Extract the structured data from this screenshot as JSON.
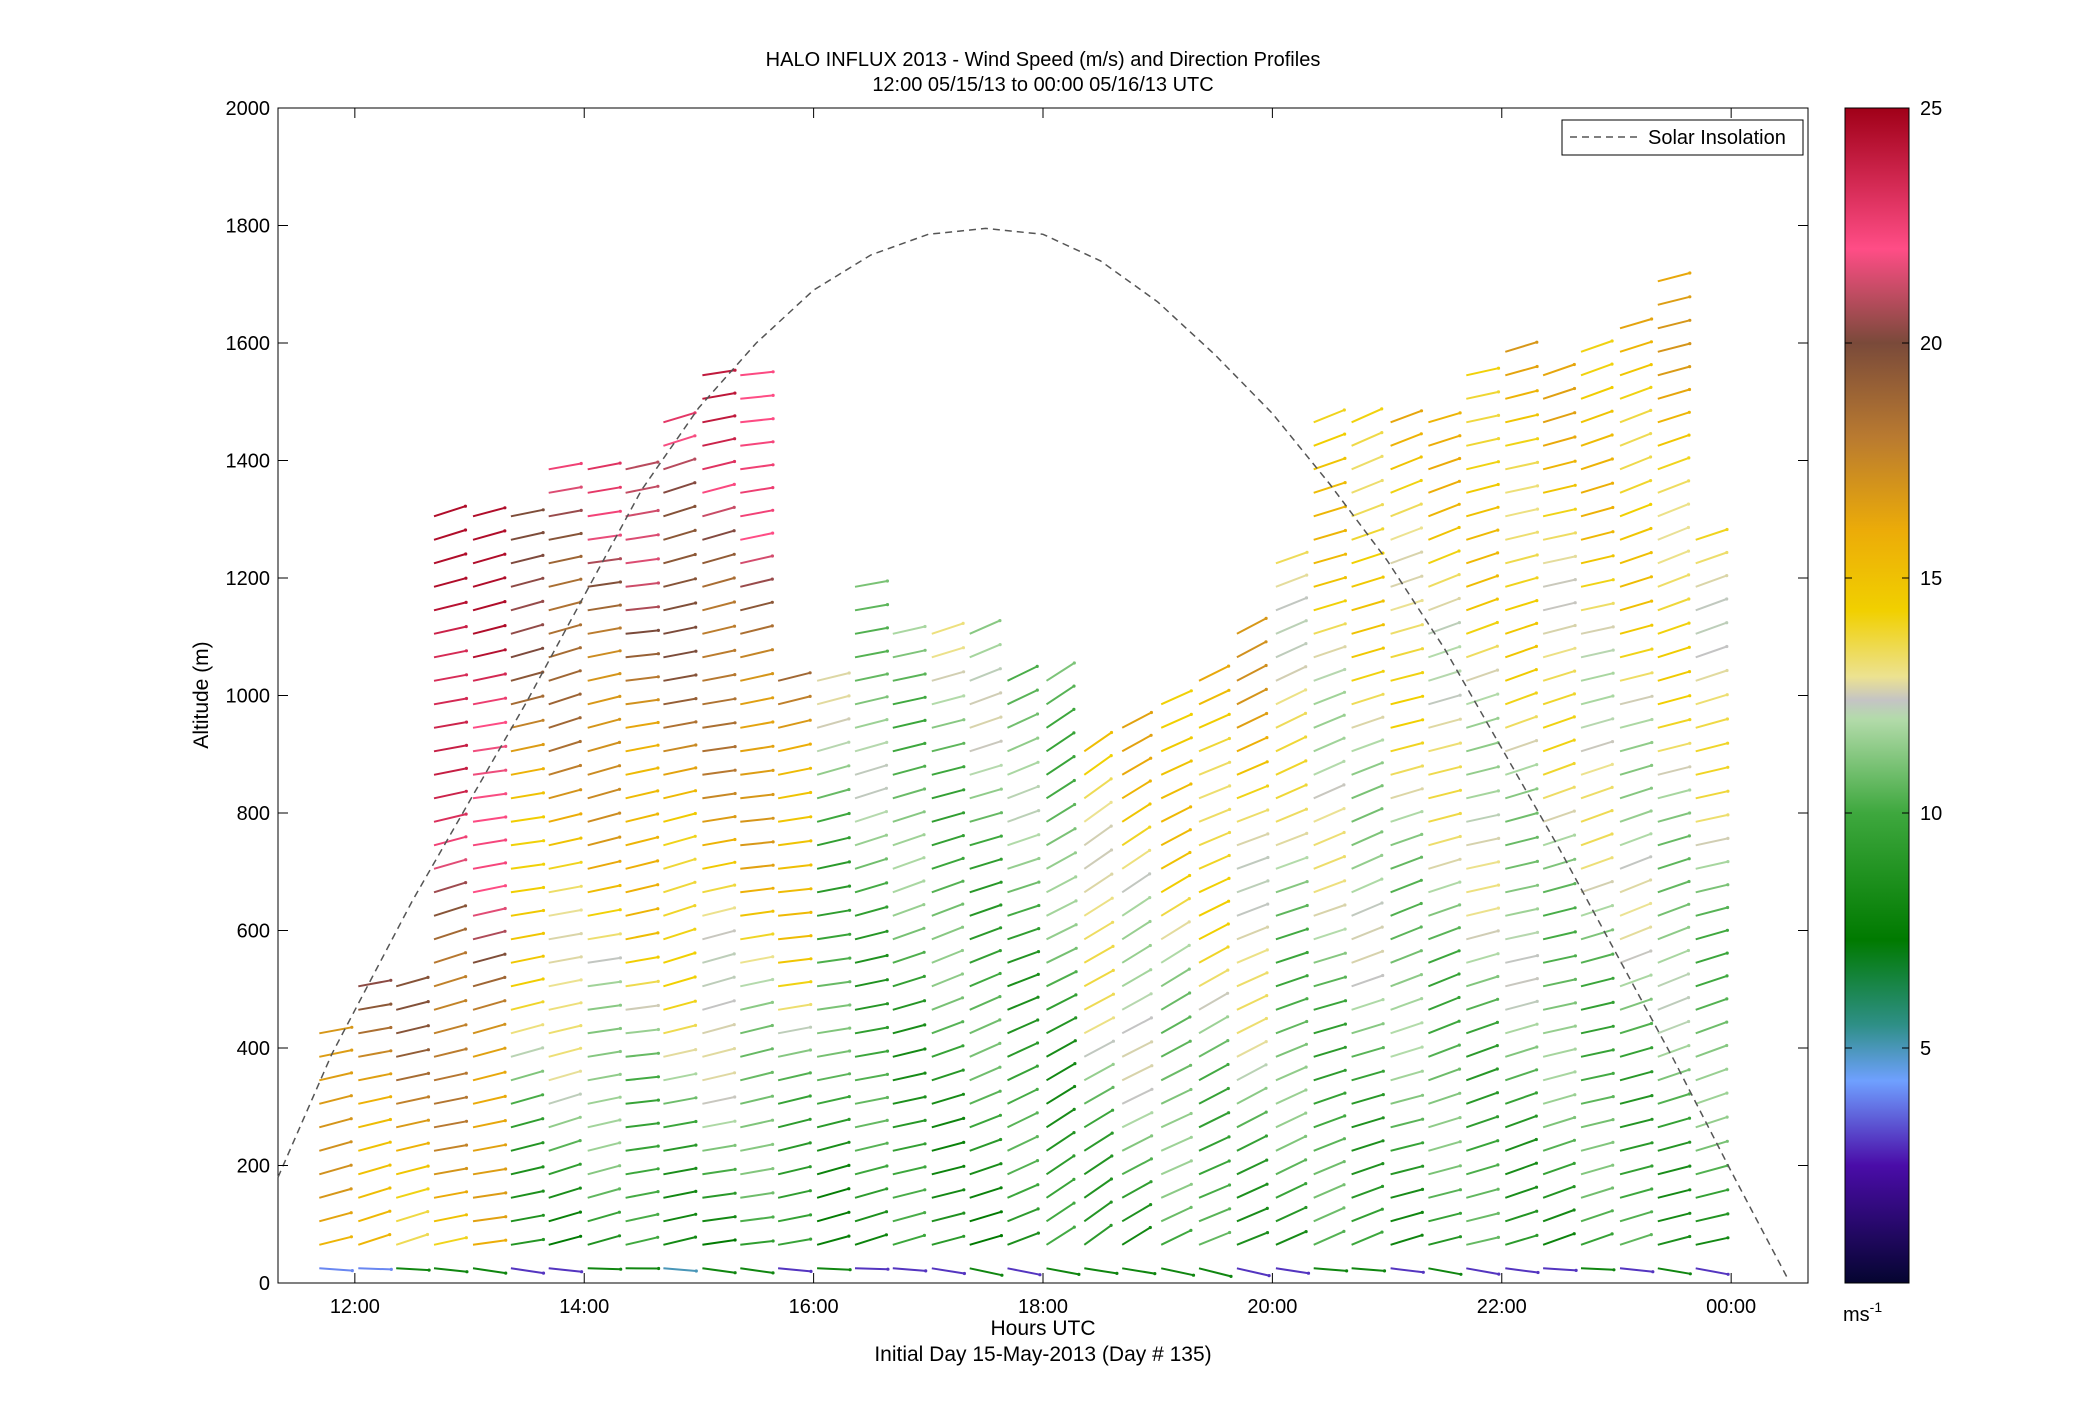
{
  "chart_data": {
    "type": "scatter",
    "subtype": "wind-barb-profile",
    "title": "HALO INFLUX 2013 - Wind Speed (m/s) and Direction Profiles",
    "subtitle": "12:00 05/15/13 to 00:00 05/16/13  UTC",
    "xlabel": "Hours UTC",
    "xlabel_secondary": "Initial Day 15-May-2013 (Day # 135)",
    "ylabel": "Altitude (m)",
    "xlim": [
      11.33,
      24.67
    ],
    "ylim": [
      0,
      2000
    ],
    "x_ticks": [
      12,
      14,
      16,
      18,
      20,
      22,
      24
    ],
    "x_tick_labels": [
      "12:00",
      "14:00",
      "16:00",
      "18:00",
      "20:00",
      "22:00",
      "00:00"
    ],
    "y_ticks": [
      0,
      200,
      400,
      600,
      800,
      1000,
      1200,
      1400,
      1600,
      1800,
      2000
    ],
    "y_tick_labels": [
      "0",
      "200",
      "400",
      "600",
      "800",
      "1000",
      "1200",
      "1400",
      "1600",
      "1800",
      "2000"
    ],
    "grid": false,
    "legend": {
      "placement": "top-right",
      "entries": [
        {
          "label": "Solar Insolation",
          "style": "dashed",
          "color": "#555555"
        }
      ]
    },
    "colorbar": {
      "label": "ms",
      "label_sup": "-1",
      "range": [
        0,
        25
      ],
      "ticks": [
        5,
        10,
        15,
        20,
        25
      ],
      "tick_labels": [
        "5",
        "10",
        "15",
        "20",
        "25"
      ],
      "stops": [
        {
          "v": 0,
          "c": "#050530"
        },
        {
          "v": 2.5,
          "c": "#4a0ca8"
        },
        {
          "v": 4.3,
          "c": "#6fa0ff"
        },
        {
          "v": 5.5,
          "c": "#2e8f86"
        },
        {
          "v": 7.3,
          "c": "#007a00"
        },
        {
          "v": 10,
          "c": "#3ea83e"
        },
        {
          "v": 12,
          "c": "#b3dbaa"
        },
        {
          "v": 12.4,
          "c": "#c4c4c4"
        },
        {
          "v": 12.9,
          "c": "#ece291"
        },
        {
          "v": 14.3,
          "c": "#f1d000"
        },
        {
          "v": 16,
          "c": "#ecac08"
        },
        {
          "v": 18,
          "c": "#b97a30"
        },
        {
          "v": 20,
          "c": "#7a4a3a"
        },
        {
          "v": 22,
          "c": "#ff4d86"
        },
        {
          "v": 25,
          "c": "#a00018"
        }
      ]
    },
    "solar_insolation": {
      "description": "dashed curve, y in plot units (altitude axis scale)",
      "x": [
        11.33,
        11.8,
        12.5,
        13.0,
        13.5,
        14.0,
        14.5,
        15.0,
        15.5,
        16.0,
        16.5,
        17.0,
        17.5,
        18.0,
        18.5,
        19.0,
        19.5,
        20.0,
        20.5,
        21.0,
        21.5,
        22.0,
        22.5,
        23.0,
        23.5,
        24.0,
        24.5
      ],
      "y": [
        180,
        390,
        650,
        820,
        990,
        1170,
        1350,
        1490,
        1600,
        1690,
        1750,
        1785,
        1795,
        1785,
        1740,
        1670,
        1580,
        1480,
        1360,
        1230,
        1080,
        910,
        740,
        560,
        380,
        190,
        5
      ]
    },
    "profiles": [
      {
        "t": 11.83,
        "top": 460,
        "base_speed": 4,
        "dir": 12
      },
      {
        "t": 12.17,
        "top": 520,
        "base_speed": 4,
        "dir": 14
      },
      {
        "t": 12.5,
        "top": 520,
        "base_speed": 8,
        "dir": 16
      },
      {
        "t": 12.83,
        "top": 1330,
        "base_speed": 8,
        "dir": 14
      },
      {
        "t": 13.17,
        "top": 1330,
        "base_speed": 8,
        "dir": 12
      },
      {
        "t": 13.5,
        "top": 1330,
        "base_speed": 3,
        "dir": 12
      },
      {
        "t": 13.83,
        "top": 1410,
        "base_speed": 3,
        "dir": 14
      },
      {
        "t": 14.17,
        "top": 1410,
        "base_speed": 8,
        "dir": 12
      },
      {
        "t": 14.5,
        "top": 1410,
        "base_speed": 8,
        "dir": 10
      },
      {
        "t": 14.83,
        "top": 1500,
        "base_speed": 5,
        "dir": 14
      },
      {
        "t": 15.17,
        "top": 1570,
        "base_speed": 8,
        "dir": 12
      },
      {
        "t": 15.5,
        "top": 1570,
        "base_speed": 8,
        "dir": 10
      },
      {
        "t": 15.83,
        "top": 1060,
        "base_speed": 3,
        "dir": 10
      },
      {
        "t": 16.17,
        "top": 1060,
        "base_speed": 8,
        "dir": 12
      },
      {
        "t": 16.5,
        "top": 1200,
        "base_speed": 3,
        "dir": 14
      },
      {
        "t": 16.83,
        "top": 1140,
        "base_speed": 3,
        "dir": 16
      },
      {
        "t": 17.17,
        "top": 1140,
        "base_speed": 3,
        "dir": 18
      },
      {
        "t": 17.5,
        "top": 1140,
        "base_speed": 8,
        "dir": 20
      },
      {
        "t": 17.83,
        "top": 1060,
        "base_speed": 3,
        "dir": 22
      },
      {
        "t": 18.17,
        "top": 1060,
        "base_speed": 8,
        "dir": 30
      },
      {
        "t": 18.5,
        "top": 940,
        "base_speed": 8,
        "dir": 32
      },
      {
        "t": 18.83,
        "top": 950,
        "base_speed": 8,
        "dir": 30
      },
      {
        "t": 19.17,
        "top": 1000,
        "base_speed": 8,
        "dir": 28
      },
      {
        "t": 19.5,
        "top": 1050,
        "base_speed": 8,
        "dir": 26
      },
      {
        "t": 19.83,
        "top": 1140,
        "base_speed": 3,
        "dir": 24
      },
      {
        "t": 20.17,
        "top": 1240,
        "base_speed": 3,
        "dir": 22
      },
      {
        "t": 20.5,
        "top": 1480,
        "base_speed": 8,
        "dir": 20
      },
      {
        "t": 20.83,
        "top": 1480,
        "base_speed": 8,
        "dir": 20
      },
      {
        "t": 21.17,
        "top": 1500,
        "base_speed": 3,
        "dir": 18
      },
      {
        "t": 21.5,
        "top": 1490,
        "base_speed": 8,
        "dir": 18
      },
      {
        "t": 21.83,
        "top": 1580,
        "base_speed": 3,
        "dir": 16
      },
      {
        "t": 22.17,
        "top": 1620,
        "base_speed": 3,
        "dir": 16
      },
      {
        "t": 22.5,
        "top": 1570,
        "base_speed": 3,
        "dir": 16
      },
      {
        "t": 22.83,
        "top": 1620,
        "base_speed": 8,
        "dir": 16
      },
      {
        "t": 23.17,
        "top": 1650,
        "base_speed": 3,
        "dir": 18
      },
      {
        "t": 23.5,
        "top": 1740,
        "base_speed": 8,
        "dir": 18
      },
      {
        "t": 23.83,
        "top": 1280,
        "base_speed": 3,
        "dir": 16
      }
    ]
  }
}
